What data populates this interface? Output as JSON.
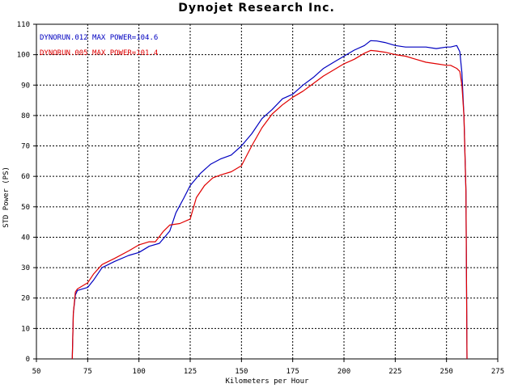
{
  "chart_data": {
    "type": "line",
    "title": "Dynojet  Research  Inc.",
    "xlabel": "Kilometers per Hour",
    "ylabel": "STD Power (PS)",
    "xlim": [
      50,
      275
    ],
    "ylim": [
      0,
      110
    ],
    "x_ticks": [
      50,
      75,
      100,
      125,
      150,
      175,
      200,
      225,
      250,
      275
    ],
    "y_ticks": [
      0,
      10,
      20,
      30,
      40,
      50,
      60,
      70,
      80,
      90,
      100,
      110
    ],
    "grid": true,
    "legend_position": "top-left",
    "series": [
      {
        "name": "DYNORUN.012  MAX POWER=104.6",
        "color": "#0000c0",
        "x": [
          67.5,
          68,
          69,
          70,
          75,
          78,
          82,
          88,
          95,
          100,
          105,
          110,
          115,
          118,
          122,
          125,
          130,
          135,
          140,
          145,
          150,
          155,
          160,
          165,
          170,
          175,
          180,
          185,
          190,
          195,
          200,
          205,
          210,
          213,
          216,
          220,
          225,
          230,
          235,
          240,
          245,
          250,
          252,
          255,
          256.5,
          257.5,
          258.5,
          259.5,
          260
        ],
        "y": [
          0,
          15,
          21,
          22.5,
          23.5,
          26,
          30,
          32,
          34,
          35,
          37,
          38,
          42,
          48,
          53,
          57,
          61,
          64,
          65.8,
          67,
          70,
          74,
          79,
          82,
          85.5,
          87,
          90,
          92.5,
          95.5,
          97.5,
          99.5,
          101.5,
          103,
          104.6,
          104.5,
          104,
          103,
          102.5,
          102.5,
          102.5,
          102,
          102.5,
          102.5,
          103,
          101,
          94,
          80,
          55,
          0
        ]
      },
      {
        "name": "DYNORUN.005  MAX POWER=101.4",
        "color": "#e00000",
        "x": [
          67.5,
          68,
          69,
          70,
          75,
          78,
          82,
          88,
          95,
          100,
          105,
          108,
          112,
          115,
          120,
          125,
          128,
          132,
          136,
          140,
          145,
          150,
          155,
          160,
          165,
          170,
          175,
          180,
          185,
          190,
          195,
          200,
          205,
          210,
          213,
          216,
          220,
          225,
          230,
          235,
          240,
          245,
          250,
          252,
          255,
          256.5,
          257.5,
          258.5,
          259.5,
          260
        ],
        "y": [
          0,
          15,
          22,
          23,
          25,
          28,
          31,
          33,
          35.5,
          37.5,
          38.5,
          38.5,
          42,
          44,
          44.5,
          46,
          53,
          57,
          59.5,
          60.5,
          61.5,
          63.5,
          70,
          76,
          80.5,
          83.5,
          86,
          88,
          90.5,
          93,
          95,
          97,
          98.5,
          100.5,
          101.4,
          101.2,
          100.8,
          100,
          99.5,
          98.5,
          97.5,
          97,
          96.5,
          96.5,
          95.5,
          94.5,
          90,
          80,
          55,
          0
        ]
      }
    ]
  }
}
